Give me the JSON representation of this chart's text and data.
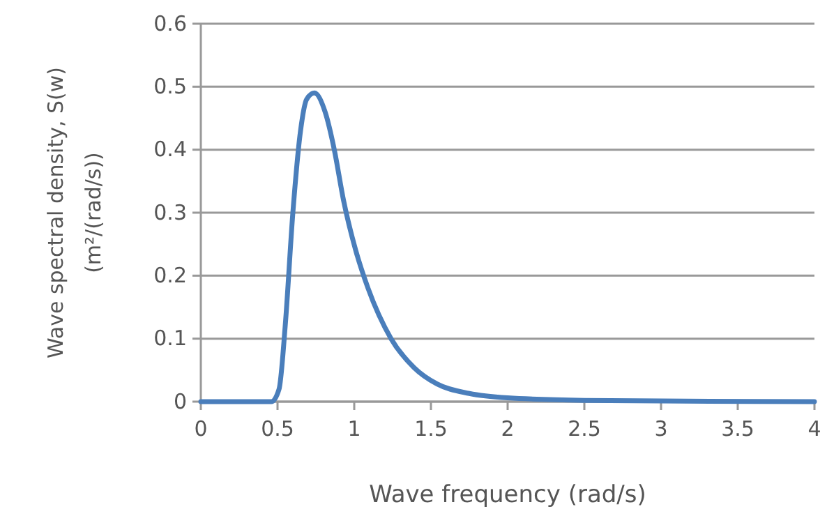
{
  "chart_data": {
    "type": "line",
    "xlabel": "Wave  frequency  (rad/s)",
    "ylabel": "Wave spectral density, S(w)\n(m²/(rad/s))",
    "x": [
      0,
      0.46,
      0.51,
      0.55,
      0.6,
      0.65,
      0.69,
      0.74,
      0.81,
      0.87,
      0.93,
      1.01,
      1.09,
      1.24,
      1.39,
      1.54,
      1.75,
      2,
      2.5,
      3,
      4
    ],
    "series": [
      {
        "color": "#4a7ebb",
        "values": [
          0,
          0,
          0.02,
          0.12,
          0.3,
          0.43,
          0.48,
          0.49,
          0.46,
          0.4,
          0.32,
          0.24,
          0.18,
          0.1,
          0.054,
          0.028,
          0.013,
          0.006,
          0.002,
          0.001,
          0
        ]
      }
    ],
    "xlim": [
      0,
      4
    ],
    "xticks": [
      0,
      0.5,
      1,
      1.5,
      2,
      2.5,
      3,
      3.5,
      4
    ],
    "ylim": [
      0,
      0.6
    ],
    "yticks": [
      0,
      0.1,
      0.2,
      0.3,
      0.4,
      0.5,
      0.6
    ],
    "grid": "y",
    "marker": "none",
    "line_style": "solid"
  }
}
